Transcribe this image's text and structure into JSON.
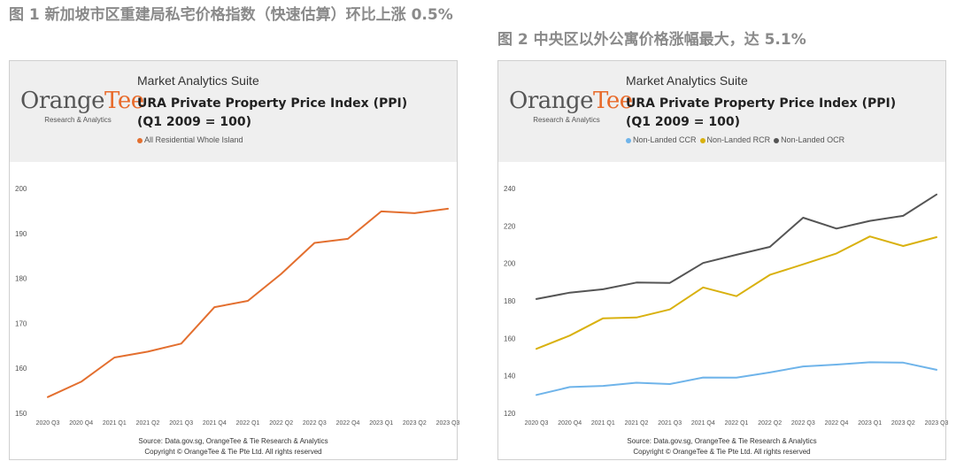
{
  "page": {
    "title_fig1": "图 1 新加坡市区重建局私宅价格指数（快速估算）环比上涨 0.5%",
    "title_fig2": "图 2 中央区以外公寓价格涨幅最大，达 5.1%"
  },
  "colors": {
    "orange": "#e36f2f",
    "blue": "#6fb4ea",
    "gold": "#d9b10f",
    "gray": "#555555",
    "header_bg": "#efefef"
  },
  "chart_data": [
    {
      "type": "line",
      "suite": "Market Analytics Suite",
      "logo": "OrangeTee",
      "logo_sub": "Research & Analytics",
      "title": "URA Private Property Price Index (PPI)",
      "subtitle": "(Q1 2009 = 100)",
      "categories": [
        "2020 Q3",
        "2020 Q4",
        "2021 Q1",
        "2021 Q2",
        "2021 Q3",
        "2021 Q4",
        "2022 Q1",
        "2022 Q2",
        "2022 Q3",
        "2022 Q4",
        "2023 Q1",
        "2023 Q2",
        "2023 Q3"
      ],
      "series": [
        {
          "name": "All Residential Whole Island",
          "color": "#e36f2f",
          "values": [
            153.6,
            157.0,
            162.4,
            163.7,
            165.5,
            173.6,
            175.0,
            181.0,
            187.9,
            188.8,
            194.9,
            194.5,
            195.5
          ]
        }
      ],
      "ylim": [
        150,
        200
      ],
      "yticks": [
        150,
        160,
        170,
        180,
        190,
        200
      ],
      "grid": false,
      "legend": "top-left",
      "source": "Source: Data.gov.sg, OrangeTee & Tie Research & Analytics",
      "copyright": "Copyright © OrangeTee & Tie Pte Ltd. All rights reserved"
    },
    {
      "type": "line",
      "suite": "Market Analytics Suite",
      "logo": "OrangeTee",
      "logo_sub": "Research & Analytics",
      "title": "URA Private Property Price Index (PPI)",
      "subtitle": "(Q1 2009 = 100)",
      "categories": [
        "2020 Q3",
        "2020 Q4",
        "2021 Q1",
        "2021 Q2",
        "2021 Q3",
        "2021 Q4",
        "2022 Q1",
        "2022 Q2",
        "2022 Q3",
        "2022 Q4",
        "2023 Q1",
        "2023 Q2",
        "2023 Q3"
      ],
      "series": [
        {
          "name": "Non-Landed CCR",
          "color": "#6fb4ea",
          "values": [
            129.8,
            134.0,
            134.6,
            136.3,
            135.6,
            139.1,
            139.0,
            141.8,
            145.0,
            146.0,
            147.2,
            147.0,
            143.2
          ]
        },
        {
          "name": "Non-Landed RCR",
          "color": "#d9b10f",
          "values": [
            154.4,
            161.5,
            170.7,
            171.1,
            175.4,
            187.2,
            182.5,
            193.9,
            199.5,
            205.3,
            214.4,
            209.3,
            214.0
          ]
        },
        {
          "name": "Non-Landed OCR",
          "color": "#555555",
          "values": [
            181.0,
            184.4,
            186.2,
            189.8,
            189.6,
            200.2,
            204.6,
            208.8,
            224.4,
            218.6,
            222.7,
            225.4,
            236.8
          ]
        }
      ],
      "ylim": [
        120,
        240
      ],
      "yticks": [
        120,
        140,
        160,
        180,
        200,
        220,
        240
      ],
      "grid": false,
      "legend": "top-left",
      "source": "Source: Data.gov.sg, OrangeTee & Tie Research & Analytics",
      "copyright": "Copyright © OrangeTee & Tie Pte Ltd. All rights reserved"
    }
  ]
}
